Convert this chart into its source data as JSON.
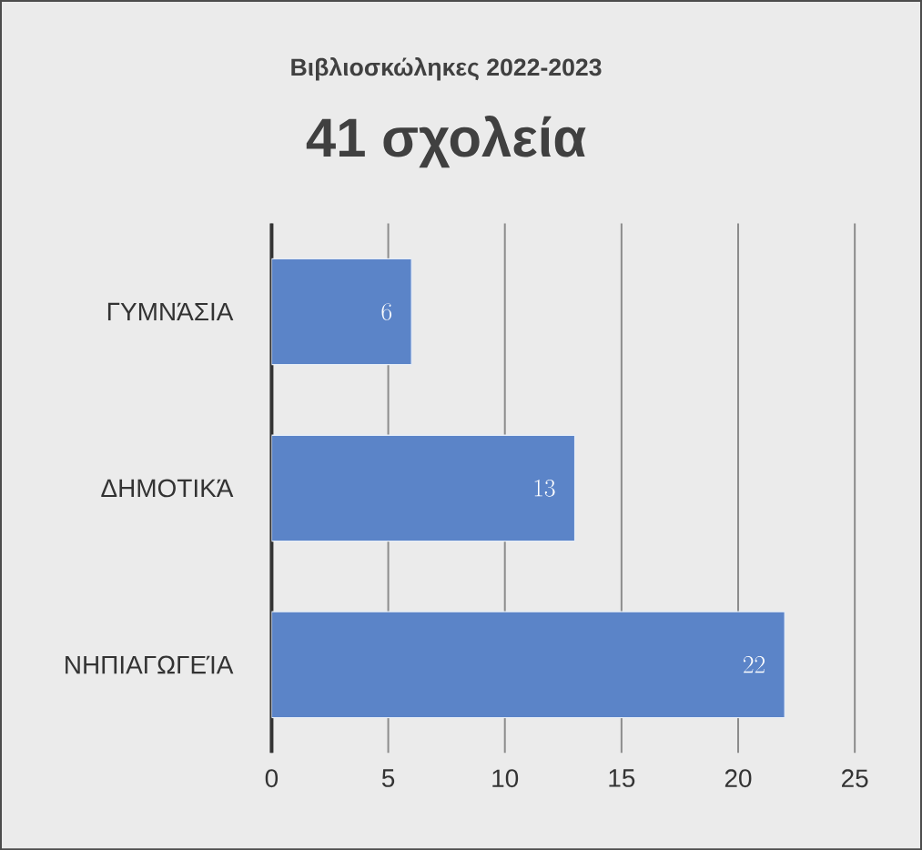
{
  "chart_data": {
    "type": "bar",
    "orientation": "horizontal",
    "title": "Βιβλιοσκώληκες 2022-2023",
    "subtitle": "41 σχολεία",
    "categories": [
      "ΓΥΜΝΆΣΙΑ",
      "ΔΗΜΟΤΙΚΆ",
      "ΝΗΠΙΑΓΩΓΕΊΑ"
    ],
    "values": [
      6,
      13,
      22
    ],
    "color": "#5b84c8",
    "xlim": [
      0,
      25
    ],
    "xticks": [
      0,
      5,
      10,
      15,
      20,
      25
    ],
    "grid": "x",
    "data_labels": true
  }
}
